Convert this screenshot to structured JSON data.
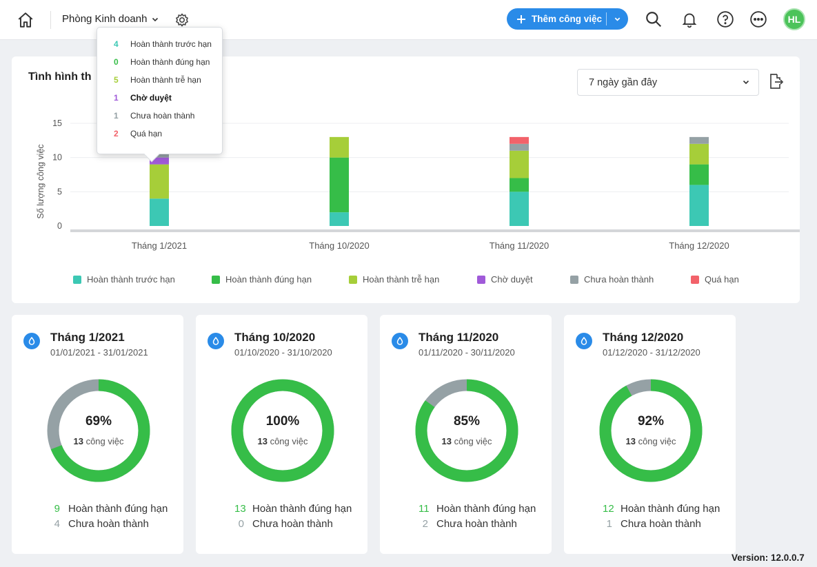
{
  "topbar": {
    "department": "Phòng Kinh doanh",
    "add_task_label": "Thêm công việc",
    "avatar_initials": "HL",
    "accent": "#2a8be8",
    "avatar_color": "#4cc35a"
  },
  "chart_section": {
    "title": "Tình hình th",
    "range_value": "7 ngày gần đây",
    "legend": [
      {
        "label": "Hoàn thành trước hạn",
        "color": "#3cc8b4"
      },
      {
        "label": "Hoàn thành đúng hạn",
        "color": "#36bd48"
      },
      {
        "label": "Hoàn thành trễ hạn",
        "color": "#a6ce39"
      },
      {
        "label": "Chờ duyệt",
        "color": "#a05ad9"
      },
      {
        "label": "Chưa hoàn thành",
        "color": "#95a1a5"
      },
      {
        "label": "Quá hạn",
        "color": "#f2626a"
      }
    ]
  },
  "chart_data": {
    "type": "bar",
    "stacked": true,
    "title": "",
    "xlabel": "",
    "ylabel": "Số lượng công việc",
    "ylim": [
      0,
      15
    ],
    "yticks": [
      0,
      5,
      10,
      15
    ],
    "grid": true,
    "legend_position": "bottom",
    "categories": [
      "Tháng 1/2021",
      "Tháng 10/2020",
      "Tháng 11/2020",
      "Tháng 12/2020"
    ],
    "series": [
      {
        "name": "Hoàn thành trước hạn",
        "color": "#3cc8b4",
        "values": [
          4,
          2,
          5,
          6
        ]
      },
      {
        "name": "Hoàn thành đúng hạn",
        "color": "#36bd48",
        "values": [
          0,
          8,
          2,
          3
        ]
      },
      {
        "name": "Hoàn thành trễ hạn",
        "color": "#a6ce39",
        "values": [
          5,
          3,
          4,
          3
        ]
      },
      {
        "name": "Chờ duyệt",
        "color": "#a05ad9",
        "values": [
          1,
          0,
          0,
          0
        ]
      },
      {
        "name": "Chưa hoàn thành",
        "color": "#95a1a5",
        "values": [
          1,
          0,
          1,
          1
        ]
      },
      {
        "name": "Quá hạn",
        "color": "#f2626a",
        "values": [
          2,
          0,
          1,
          0
        ]
      }
    ]
  },
  "tooltip": {
    "rows": [
      {
        "num": "4",
        "label": "Hoàn thành trước hạn",
        "color": "#3cc8b4"
      },
      {
        "num": "0",
        "label": "Hoàn thành đúng hạn",
        "color": "#36bd48"
      },
      {
        "num": "5",
        "label": "Hoàn thành trễ hạn",
        "color": "#a6ce39"
      },
      {
        "num": "1",
        "label": "Chờ duyệt",
        "color": "#a05ad9"
      },
      {
        "num": "1",
        "label": "Chưa hoàn thành",
        "color": "#95a1a5"
      },
      {
        "num": "2",
        "label": "Quá hạn",
        "color": "#f2626a"
      }
    ]
  },
  "months": [
    {
      "title": "Tháng 1/2021",
      "date_range": "01/01/2021 - 31/01/2021",
      "percent_text": "69%",
      "percent": 69,
      "total_num": "13",
      "total_suffix": " công việc",
      "done_num": "9",
      "done_label": "Hoàn thành đúng hạn",
      "undone_num": "4",
      "undone_label": "Chưa hoàn thành"
    },
    {
      "title": "Tháng 10/2020",
      "date_range": "01/10/2020 - 31/10/2020",
      "percent_text": "100%",
      "percent": 100,
      "total_num": "13",
      "total_suffix": " công việc",
      "done_num": "13",
      "done_label": "Hoàn thành đúng hạn",
      "undone_num": "0",
      "undone_label": "Chưa hoàn thành"
    },
    {
      "title": "Tháng 11/2020",
      "date_range": "01/11/2020 - 30/11/2020",
      "percent_text": "85%",
      "percent": 85,
      "total_num": "13",
      "total_suffix": " công việc",
      "done_num": "11",
      "done_label": "Hoàn thành đúng hạn",
      "undone_num": "2",
      "undone_label": "Chưa hoàn thành"
    },
    {
      "title": "Tháng 12/2020",
      "date_range": "01/12/2020 - 31/12/2020",
      "percent_text": "92%",
      "percent": 92,
      "total_num": "13",
      "total_suffix": " công việc",
      "done_num": "12",
      "done_label": "Hoàn thành đúng hạn",
      "undone_num": "1",
      "undone_label": "Chưa hoàn thành"
    }
  ],
  "donut_colors": {
    "done": "#36bd48",
    "undone": "#95a1a5"
  },
  "version": "Version: 12.0.0.7"
}
